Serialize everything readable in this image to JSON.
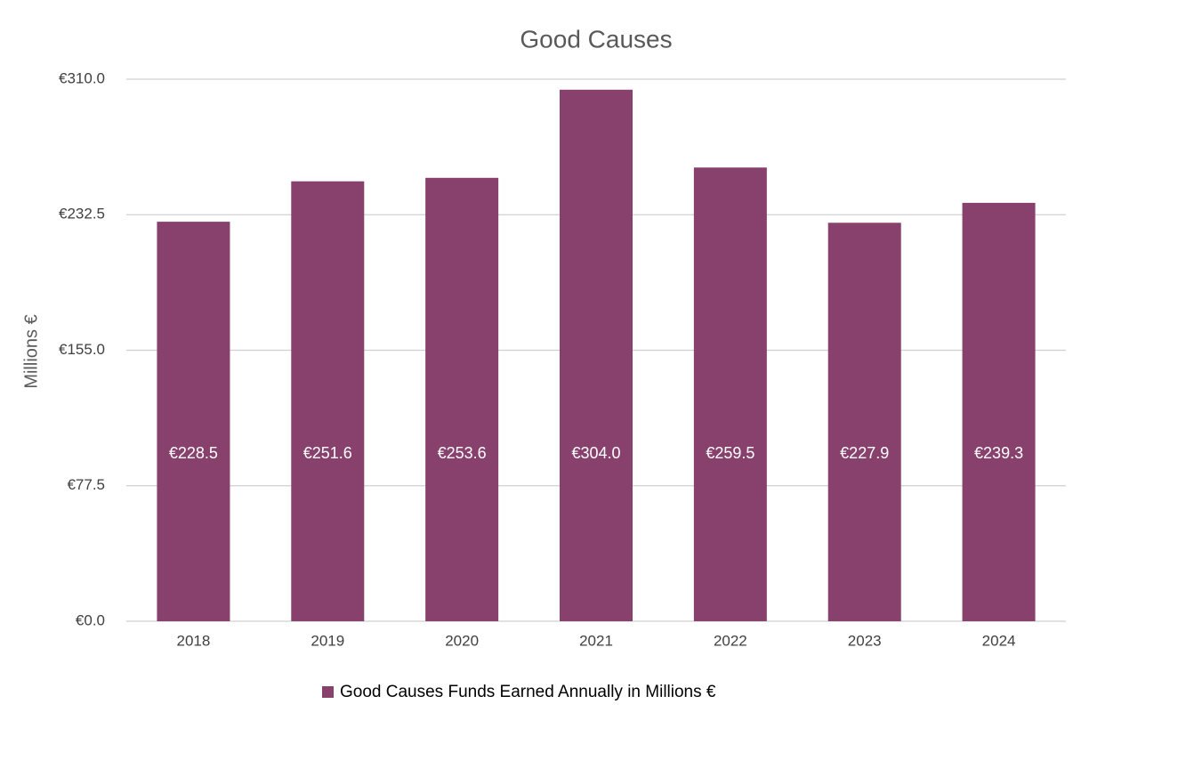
{
  "chart_data": {
    "type": "bar",
    "title": "Good Causes",
    "y_label": "Millions €",
    "categories": [
      "2018",
      "2019",
      "2020",
      "2021",
      "2022",
      "2023",
      "2024"
    ],
    "series": [
      {
        "name": "Good Causes Funds Earned Annually in Millions €",
        "color": "#88416d",
        "values": [
          228.5,
          251.6,
          253.6,
          304.0,
          259.5,
          227.9,
          239.3
        ],
        "value_labels": [
          "€228.5",
          "€251.6",
          "€253.6",
          "€304.0",
          "€259.5",
          "€227.9",
          "€239.3"
        ]
      }
    ],
    "ylim": [
      0,
      310
    ],
    "yticks": [
      {
        "value": 0,
        "label": "€0.0"
      },
      {
        "value": 77.5,
        "label": "€77.5"
      },
      {
        "value": 155,
        "label": "€155.0"
      },
      {
        "value": 232.5,
        "label": "€232.5"
      },
      {
        "value": 310,
        "label": "€310.0"
      }
    ],
    "grid": true,
    "legend": "bottom"
  }
}
